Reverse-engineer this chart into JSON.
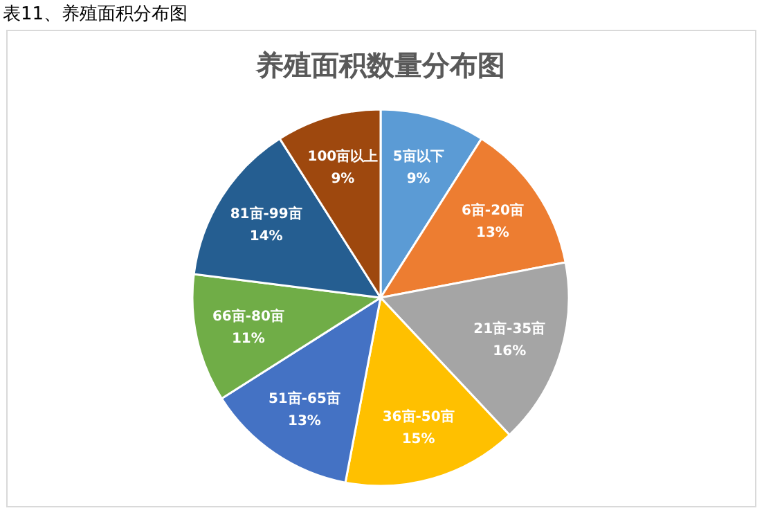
{
  "chart_data": {
    "type": "pie",
    "title": "养殖面积数量分布图",
    "annotations": [
      "表11、养殖面积分布图"
    ],
    "categories": [
      "5亩以下",
      "6亩-20亩",
      "21亩-35亩",
      "36亩-50亩",
      "51亩-65亩",
      "66亩-80亩",
      "81亩-99亩",
      "100亩以上"
    ],
    "values": [
      9,
      13,
      16,
      15,
      13,
      11,
      14,
      9
    ],
    "value_labels": [
      "9%",
      "13%",
      "16%",
      "15%",
      "13%",
      "11%",
      "14%",
      "9%"
    ],
    "colors": [
      "#5b9bd5",
      "#ed7d31",
      "#a5a5a5",
      "#ffc000",
      "#4472c4",
      "#70ad47",
      "#255e91",
      "#9e480e"
    ]
  }
}
